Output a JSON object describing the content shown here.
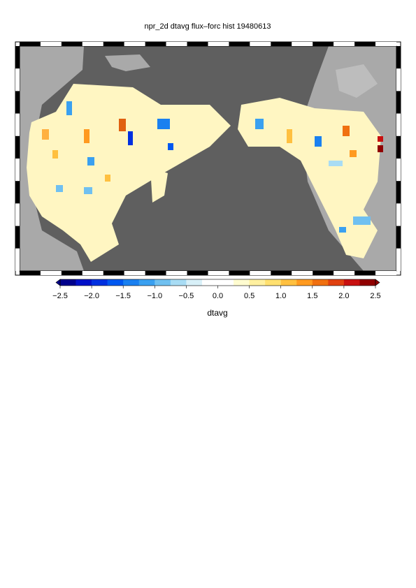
{
  "title": "npr_2d dtavg flux–forc hist 19480613",
  "colorbar": {
    "label": "dtavg",
    "lim": [
      -2.5,
      2.5
    ],
    "ticks": [
      {
        "value": -2.5,
        "label": "−2.5"
      },
      {
        "value": -2,
        "label": "−2.0"
      },
      {
        "value": -1.5,
        "label": "−1.5"
      },
      {
        "value": -1,
        "label": "−1.0"
      },
      {
        "value": -0.5,
        "label": "−0.5"
      },
      {
        "value": 0,
        "label": "0.0"
      },
      0.5,
      {
        "value": 1,
        "label": "1.0"
      },
      1.5,
      {
        "value": 2,
        "label": "2.0"
      },
      2.5
    ],
    "colors": [
      "#00008c",
      "#0010c8",
      "#0030e0",
      "#0058f0",
      "#1a80f0",
      "#3aa0f0",
      "#70c0f0",
      "#a8dcf4",
      "#d8f0f8",
      "#ffffff",
      "#ffffff",
      "#fffcd0",
      "#fff0a0",
      "#ffe070",
      "#ffc040",
      "#ff9a20",
      "#f07010",
      "#e04010",
      "#c81010",
      "#900000"
    ]
  }
}
